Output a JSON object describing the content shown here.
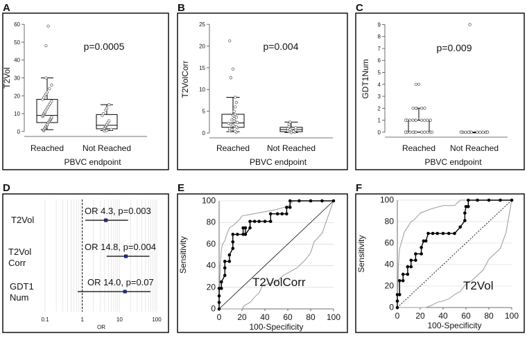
{
  "chart_data": [
    {
      "panel": "A",
      "type": "box",
      "ylabel": "T2Vol",
      "xlabel": "PBVC endpoint",
      "categories": [
        "Reached",
        "Not Reached"
      ],
      "yticks": [
        0,
        10,
        20,
        30,
        40,
        50,
        60
      ],
      "ylim": [
        -2,
        62
      ],
      "annotation": "p=0.0005",
      "boxes": [
        {
          "name": "Reached",
          "min": 1,
          "q1": 5,
          "median": 9,
          "q3": 18,
          "max": 30,
          "points": [
            0.5,
            1,
            1.5,
            2,
            2.5,
            3,
            3.5,
            4,
            5,
            5.5,
            6,
            6.5,
            7,
            7.5,
            8,
            8.5,
            9,
            9.5,
            10,
            10.5,
            11,
            12,
            13,
            14,
            15,
            16,
            17,
            18,
            19,
            20,
            21,
            22,
            24,
            26,
            30,
            48,
            59
          ]
        },
        {
          "name": "Not Reached",
          "min": 0.5,
          "q1": 1.5,
          "median": 3.5,
          "q3": 9.5,
          "max": 15,
          "points": [
            0.3,
            0.6,
            1,
            1.2,
            1.5,
            2,
            2.5,
            3,
            3.5,
            4,
            5,
            6,
            9,
            10,
            12,
            13,
            15
          ]
        }
      ]
    },
    {
      "panel": "B",
      "type": "box",
      "ylabel": "T2VolCorr",
      "xlabel": "PBVC endpoint",
      "categories": [
        "Reached",
        "Not Reached"
      ],
      "yticks": [
        0,
        5,
        10,
        15,
        20,
        25
      ],
      "ylim": [
        -0.8,
        25.5
      ],
      "annotation": "p=0.004",
      "boxes": [
        {
          "name": "Reached",
          "min": 0.3,
          "q1": 1.3,
          "median": 2.3,
          "q3": 4.3,
          "max": 8.2,
          "points": [
            0.2,
            0.4,
            0.5,
            0.8,
            1,
            1.2,
            1.4,
            1.6,
            1.8,
            2,
            2.2,
            2.4,
            2.6,
            2.8,
            3,
            3.3,
            3.6,
            4,
            4.3,
            5,
            6,
            7,
            8.2,
            12.7,
            14.7,
            21.2
          ]
        },
        {
          "name": "Not Reached",
          "min": 0.1,
          "q1": 0.3,
          "median": 0.8,
          "q3": 1.3,
          "max": 2.5,
          "points": [
            0.1,
            0.2,
            0.3,
            0.4,
            0.5,
            0.6,
            0.7,
            0.8,
            1,
            1.2,
            1.5,
            2,
            2.5
          ]
        }
      ]
    },
    {
      "panel": "C",
      "type": "box",
      "ylabel": "GDT1Num",
      "xlabel": "PBVC endpoint",
      "categories": [
        "Reached",
        "Not Reached"
      ],
      "yticks": [
        0,
        1,
        2,
        3,
        4,
        5,
        6,
        7,
        8,
        9
      ],
      "ylim": [
        -0.3,
        9.2
      ],
      "annotation": "p=0.009",
      "boxes": [
        {
          "name": "Reached",
          "min": 0,
          "q1": 0,
          "median": 0,
          "q3": 1,
          "max": 2,
          "points": [
            0,
            0,
            0,
            0,
            0,
            0,
            0,
            0,
            0,
            0,
            0,
            0,
            1,
            1,
            1,
            1,
            1,
            1,
            1,
            1,
            1,
            1,
            2,
            2,
            2,
            2,
            2,
            4,
            4
          ]
        },
        {
          "name": "Not Reached",
          "min": 0,
          "q1": 0,
          "median": 0,
          "q3": 0,
          "max": 0,
          "points": [
            0,
            0,
            0,
            0,
            0,
            0,
            0,
            0,
            0,
            0,
            0,
            0,
            0,
            0,
            0,
            0,
            0,
            9
          ]
        }
      ]
    },
    {
      "panel": "D",
      "type": "forest",
      "xlabel": "OR",
      "xscale": "log",
      "xlim": [
        0.1,
        100
      ],
      "xticks": [
        0.1,
        1,
        10,
        100
      ],
      "xtick_labels": [
        "0.1",
        "1",
        "10",
        "100"
      ],
      "reference": 1,
      "rows": [
        {
          "label": "T2Vol",
          "or": 4.3,
          "ci": [
            1.2,
            17
          ],
          "text": "OR 4.3, p=0.003"
        },
        {
          "label": "T2Vol Corr",
          "or": 14.8,
          "ci": [
            4.5,
            64
          ],
          "text": "OR 14.8, p=0.004"
        },
        {
          "label": "GDT1 Num",
          "or": 14.0,
          "ci": [
            0.75,
            68
          ],
          "text": "OR 14.0, p=0.07"
        }
      ]
    },
    {
      "panel": "E",
      "type": "line",
      "title": "T2VolCorr",
      "xlabel": "100-Specificity",
      "ylabel": "Sensitivity",
      "xlim": [
        0,
        100
      ],
      "ylim": [
        0,
        100
      ],
      "xticks": [
        0,
        20,
        40,
        60,
        80,
        100
      ],
      "yticks": [
        0,
        20,
        40,
        60,
        80,
        100
      ],
      "diagonal": "solid",
      "roc": {
        "x": [
          0,
          0,
          0,
          0,
          2,
          2,
          5,
          5,
          5,
          9,
          9,
          12,
          12,
          12,
          16,
          21,
          21,
          23,
          23,
          27,
          27,
          31,
          35,
          40,
          45,
          45,
          51,
          55,
          59,
          59,
          62,
          62,
          70,
          80,
          90,
          100
        ],
        "y": [
          0,
          6,
          12,
          19,
          19,
          25,
          31,
          38,
          44,
          44,
          50,
          56,
          62,
          69,
          69,
          69,
          75,
          75,
          69,
          75,
          81,
          81,
          81,
          81,
          81,
          88,
          88,
          88,
          88,
          94,
          94,
          100,
          100,
          100,
          100,
          100
        ]
      },
      "ci_upper": {
        "x": [
          0,
          1,
          2,
          3,
          5,
          7,
          9,
          12,
          15,
          18,
          20,
          30,
          40,
          50,
          60,
          65,
          80,
          95,
          100
        ],
        "y": [
          0,
          40,
          55,
          60,
          63,
          70,
          75,
          77,
          80,
          83,
          86,
          88,
          90,
          92,
          95,
          100,
          100,
          100,
          100
        ]
      },
      "ci_lower": {
        "x": [
          0,
          20,
          22,
          27,
          32,
          35,
          38,
          42,
          50,
          56,
          63,
          68,
          75,
          80,
          83,
          90,
          100
        ],
        "y": [
          0,
          0,
          3,
          6,
          12,
          15,
          22,
          23,
          25,
          31,
          35,
          38,
          45,
          52,
          62,
          70,
          100
        ]
      }
    },
    {
      "panel": "F",
      "type": "line",
      "title": "T2Vol",
      "xlabel": "100-Specificity",
      "ylabel": "Sensitivity",
      "xlim": [
        0,
        100
      ],
      "ylim": [
        0,
        100
      ],
      "xticks": [
        0,
        20,
        40,
        60,
        80,
        100
      ],
      "yticks": [
        0,
        20,
        40,
        60,
        80,
        100
      ],
      "diagonal": "dotted",
      "roc": {
        "x": [
          0,
          0,
          0,
          2,
          2,
          5,
          5,
          9,
          9,
          12,
          12,
          16,
          16,
          21,
          21,
          23,
          25,
          27,
          31,
          35,
          40,
          45,
          50,
          55,
          59,
          59,
          60,
          62,
          62,
          70,
          80,
          90,
          100
        ],
        "y": [
          0,
          6,
          12,
          12,
          25,
          25,
          31,
          31,
          38,
          38,
          44,
          44,
          50,
          50,
          56,
          62,
          62,
          69,
          69,
          69,
          69,
          69,
          69,
          75,
          81,
          88,
          94,
          94,
          100,
          100,
          100,
          100,
          100
        ]
      },
      "ci_upper": {
        "x": [
          0,
          1,
          2,
          4,
          6,
          9,
          12,
          15,
          20,
          25,
          30,
          40,
          50,
          55,
          60,
          80,
          100
        ],
        "y": [
          0,
          40,
          55,
          62,
          70,
          75,
          80,
          82,
          88,
          90,
          92,
          95,
          95,
          100,
          100,
          100,
          100
        ]
      },
      "ci_lower": {
        "x": [
          0,
          25,
          30,
          35,
          40,
          45,
          50,
          55,
          60,
          65,
          75,
          80,
          90,
          95,
          100
        ],
        "y": [
          0,
          0,
          2,
          5,
          6,
          8,
          12,
          15,
          22,
          25,
          35,
          45,
          55,
          70,
          100
        ]
      }
    }
  ]
}
